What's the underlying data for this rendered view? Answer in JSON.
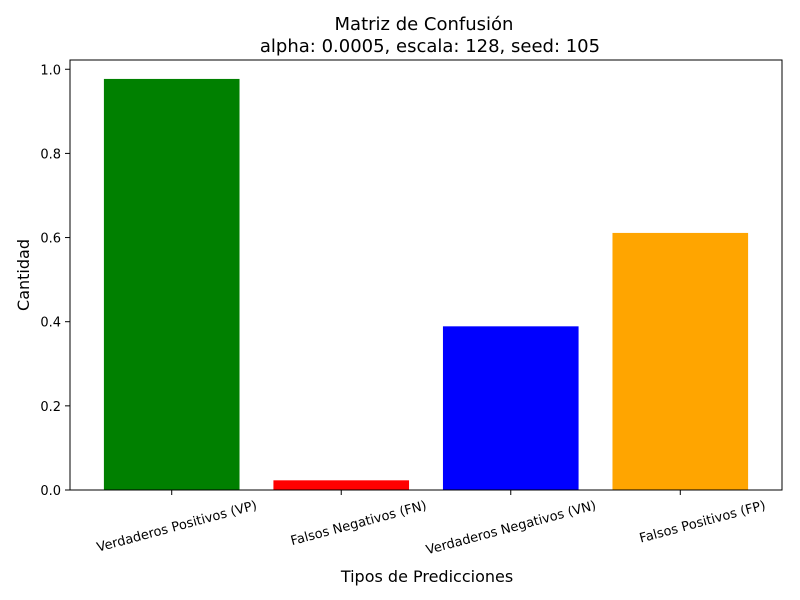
{
  "chart_data": {
    "type": "bar",
    "title": "Matriz de Confusión",
    "subtitle": "alpha: 0.0005, escala: 128, seed: 105",
    "xlabel": "Tipos de Predicciones",
    "ylabel": "Cantidad",
    "categories": [
      "Verdaderos Positivos (VP)",
      "Falsos Negativos (FN)",
      "Verdaderos Negativos (VN)",
      "Falsos Positivos (FP)"
    ],
    "values": [
      0.977,
      0.023,
      0.389,
      0.611
    ],
    "colors": [
      "#008000",
      "#ff0000",
      "#0000ff",
      "#ffa500"
    ],
    "ylim": [
      0,
      1.022
    ],
    "yticks": [
      0.0,
      0.2,
      0.4,
      0.6,
      0.8,
      1.0
    ],
    "ytick_labels": [
      "0.0",
      "0.2",
      "0.4",
      "0.6",
      "0.8",
      "1.0"
    ],
    "grid": false,
    "legend": "none"
  }
}
